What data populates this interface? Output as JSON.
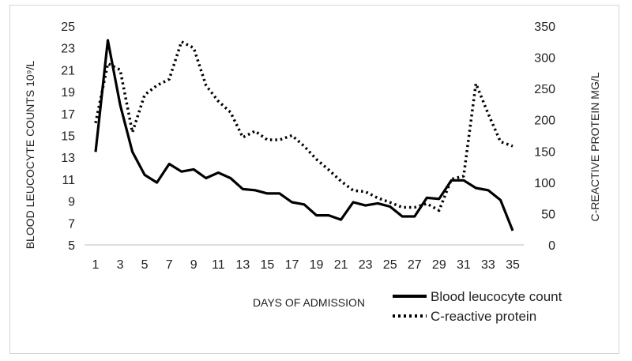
{
  "chart_data": {
    "type": "line",
    "title": "",
    "xlabel": "DAYS OF ADMISSION",
    "ylabel_left": "BLOOD LEUCOCYTE COUNTS 10⁹/L",
    "ylabel_right": "C-REACTIVE PROTEIN MG/L",
    "x": [
      1,
      2,
      3,
      4,
      5,
      6,
      7,
      8,
      9,
      10,
      11,
      12,
      13,
      14,
      15,
      16,
      17,
      18,
      19,
      20,
      21,
      22,
      23,
      24,
      25,
      26,
      27,
      28,
      29,
      30,
      31,
      32,
      33,
      34,
      35
    ],
    "x_tick_labels": [
      "1",
      "3",
      "5",
      "7",
      "9",
      "11",
      "13",
      "15",
      "17",
      "19",
      "21",
      "23",
      "25",
      "27",
      "29",
      "31",
      "33",
      "35"
    ],
    "y_left_ticks": [
      "5",
      "7",
      "9",
      "11",
      "13",
      "15",
      "17",
      "19",
      "21",
      "23",
      "25"
    ],
    "y_right_ticks": [
      "0",
      "50",
      "100",
      "150",
      "200",
      "250",
      "300",
      "350"
    ],
    "ylim_left": [
      5,
      25
    ],
    "ylim_right": [
      0,
      350
    ],
    "grid": false,
    "legend_position": "bottom-right",
    "series": [
      {
        "name": "Blood leucocyte count",
        "axis": "left",
        "style": "solid",
        "color": "#000000",
        "values": [
          13.5,
          23.7,
          17.8,
          13.5,
          11.4,
          10.7,
          12.4,
          11.7,
          11.9,
          11.1,
          11.6,
          11.1,
          10.1,
          10.0,
          9.7,
          9.7,
          8.9,
          8.7,
          7.7,
          7.7,
          7.3,
          8.9,
          8.6,
          8.8,
          8.5,
          7.6,
          7.6,
          9.3,
          9.2,
          10.9,
          10.9,
          10.2,
          10.0,
          9.1,
          6.3
        ]
      },
      {
        "name": "C-reactive protein",
        "axis": "right",
        "style": "dotted",
        "color": "#000000",
        "values": [
          195,
          290,
          280,
          180,
          240,
          255,
          265,
          325,
          315,
          255,
          230,
          212,
          172,
          182,
          168,
          168,
          175,
          158,
          137,
          120,
          102,
          87,
          85,
          75,
          68,
          60,
          60,
          66,
          55,
          105,
          110,
          258,
          210,
          165,
          158
        ]
      }
    ]
  }
}
